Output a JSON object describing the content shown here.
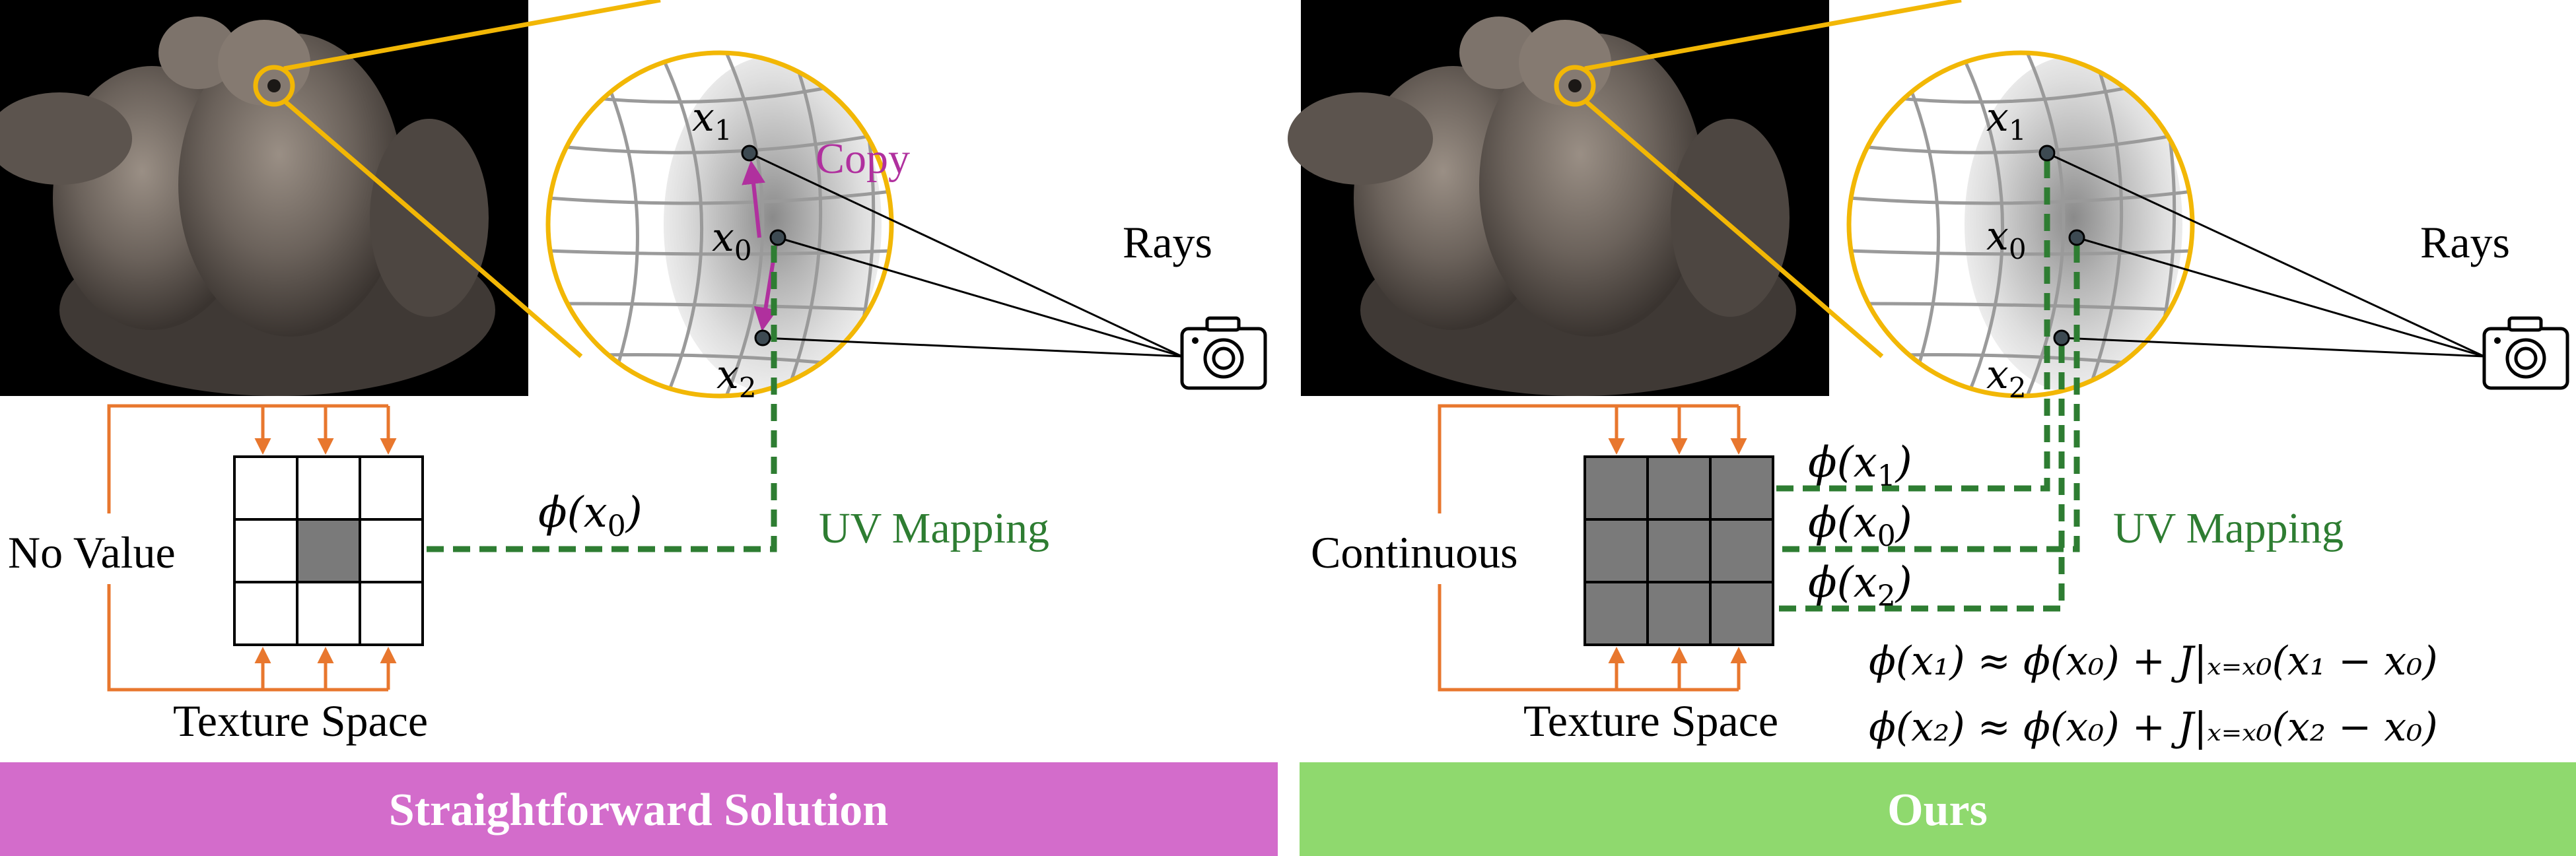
{
  "panels": {
    "left": {
      "banner": "Straightforward Solution",
      "banner_color": "#d36ccb",
      "rays_label": "Rays",
      "points": {
        "x1": "x",
        "x1_sub": "1",
        "x0": "x",
        "x0_sub": "0",
        "x2": "x",
        "x2_sub": "2"
      },
      "copy_label": "Copy",
      "uv_label": "UV Mapping",
      "phi_label": "ϕ(",
      "phi_arg": "x",
      "phi_sub": "0",
      "phi_close": ")",
      "side_label": "No Value",
      "texture_label": "Texture Space"
    },
    "right": {
      "banner": "Ours",
      "banner_color": "#8fd96e",
      "rays_label": "Rays",
      "points": {
        "x1": "x",
        "x1_sub": "1",
        "x0": "x",
        "x0_sub": "0",
        "x2": "x",
        "x2_sub": "2"
      },
      "uv_label": "UV Mapping",
      "phi_labels": [
        {
          "pre": "ϕ(",
          "arg": "x",
          "sub": "1",
          "post": ")"
        },
        {
          "pre": "ϕ(",
          "arg": "x",
          "sub": "0",
          "post": ")"
        },
        {
          "pre": "ϕ(",
          "arg": "x",
          "sub": "2",
          "post": ")"
        }
      ],
      "side_label": "Continuous",
      "texture_label": "Texture Space",
      "equations": [
        "ϕ(x₁) ≈ ϕ(x₀) + J|ₓ₌ₓ₀(x₁ − x₀)",
        "ϕ(x₂) ≈ ϕ(x₀) + J|ₓ₌ₓ₀(x₂ − x₀)"
      ]
    }
  },
  "colors": {
    "magnifier": "#f2b705",
    "green_dash": "#2e7d32",
    "copy": "#b0309e",
    "orange": "#e8772e",
    "cell_fill": "#7a7a7a"
  },
  "icons": {
    "camera": "camera-icon",
    "photo": "bird-statue-photo"
  }
}
